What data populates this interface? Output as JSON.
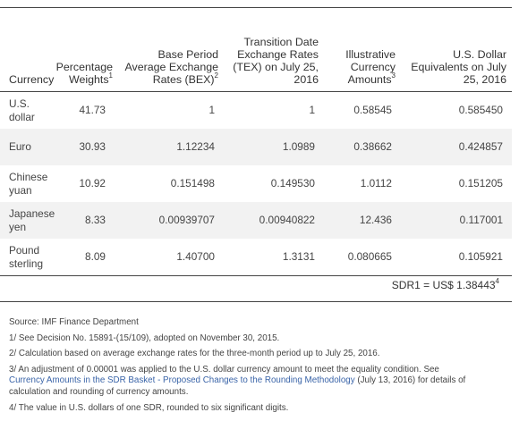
{
  "table": {
    "headers": {
      "currency": "Currency",
      "weights": "Percentage Weights",
      "weights_sup": "1",
      "bex": "Base Period Average Exchange Rates (BEX)",
      "bex_sup": "2",
      "tex": "Transition Date Exchange Rates (TEX) on July 25, 2016",
      "amounts": "Illustrative Currency Amounts",
      "amounts_sup": "3",
      "usd": "U.S. Dollar Equivalents on July 25, 2016"
    },
    "rows": [
      {
        "currency": "U.S. dollar",
        "weight": "41.73",
        "bex": "1",
        "tex": "1",
        "amount": "0.58545",
        "usd": "0.585450"
      },
      {
        "currency": "Euro",
        "weight": "30.93",
        "bex": "1.12234",
        "tex": "1.0989",
        "amount": "0.38662",
        "usd": "0.424857"
      },
      {
        "currency": "Chinese yuan",
        "weight": "10.92",
        "bex": "0.151498",
        "tex": "0.149530",
        "amount": "1.0112",
        "usd": "0.151205"
      },
      {
        "currency": "Japanese yen",
        "weight": "8.33",
        "bex": "0.00939707",
        "tex": "0.00940822",
        "amount": "12.436",
        "usd": "0.117001"
      },
      {
        "currency": "Pound sterling",
        "weight": "8.09",
        "bex": "1.40700",
        "tex": "1.3131",
        "amount": "0.080665",
        "usd": "0.105921"
      }
    ]
  },
  "total": {
    "label": "SDR1 = US$ 1.38443",
    "sup": "4"
  },
  "notes": {
    "source": "Source: IMF Finance Department",
    "n1": "1/ See Decision No. 15891-(15/109), adopted on November 30, 2015.",
    "n2": "2/ Calculation based on average exchange rates for the three-month period up to July 25, 2016.",
    "n3_before": "3/ An adjustment of 0.00001 was applied to the U.S. dollar currency amount to meet the equality condition. See",
    "n3_link": "Currency Amounts in the SDR Basket - Proposed Changes to the Rounding Methodology",
    "n3_after": " (July 13, 2016) for details of calculation and rounding of currency amounts.",
    "n4": "4/ The value in U.S. dollars of one SDR, rounded to six significant digits."
  }
}
